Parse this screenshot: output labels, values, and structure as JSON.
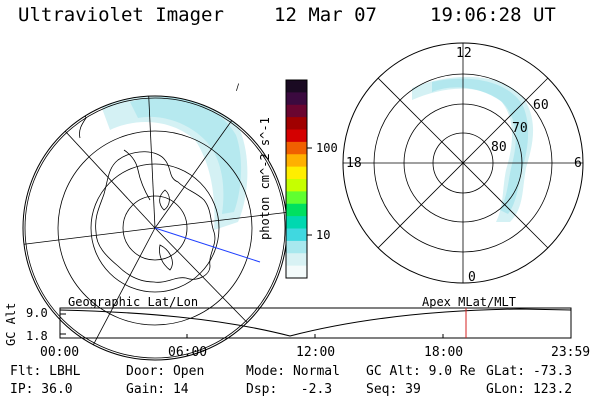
{
  "header": {
    "title": "Ultraviolet Imager",
    "date": "12 Mar 07",
    "time": "19:06:28 UT"
  },
  "colorbar": {
    "unit_label": "photon cm^-2 s^-1",
    "ticks": [
      "100",
      "10"
    ],
    "colors": [
      "#1a0a22",
      "#3b0a3f",
      "#6a0530",
      "#a00000",
      "#d40000",
      "#f06000",
      "#ffb000",
      "#ffee00",
      "#c6ff00",
      "#60ff30",
      "#00e060",
      "#00d8b0",
      "#40d8e0",
      "#a8e8ee",
      "#d8f2f4",
      "#f4fbfb"
    ]
  },
  "left_map": {
    "title": "Geographic Lat/Lon"
  },
  "right_map": {
    "title": "Apex MLat/MLT",
    "mlt_labels": {
      "top": "12",
      "left": "18",
      "right": "6",
      "bottom": "0"
    },
    "lat_labels": [
      "60",
      "70",
      "80"
    ]
  },
  "timeline": {
    "axis_label": "GC Alt",
    "y_top": "9.0",
    "y_bottom": "1.8",
    "x_ticks": [
      "00:00",
      "06:00",
      "12:00",
      "18:00",
      "23:59"
    ],
    "marker_color": "#d42020"
  },
  "info": {
    "flt": "Flt: LBHL",
    "ip": "IP: 36.0",
    "door": "Door: Open",
    "gain": "Gain: 14",
    "mode": "Mode: Normal",
    "dsp": "Dsp:   -2.3",
    "gcalt": "GC Alt: 9.0 Re",
    "seq": "Seq: 39",
    "glat": "GLat: -73.3",
    "glon": "GLon: 123.2"
  }
}
